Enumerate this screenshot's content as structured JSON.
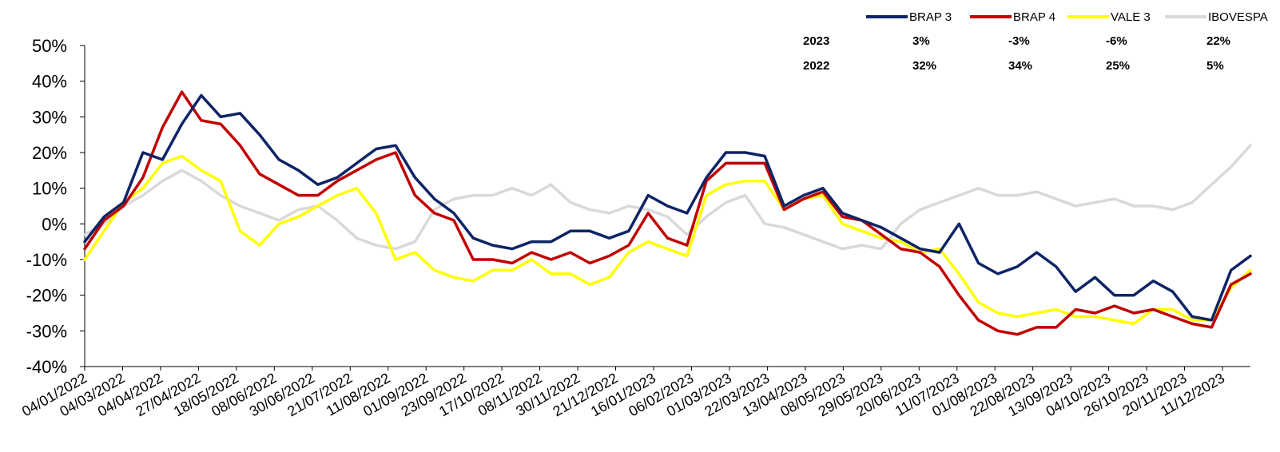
{
  "chart_data": {
    "type": "line",
    "title": "",
    "xlabel": "",
    "ylabel": "",
    "ylim": [
      -40,
      50
    ],
    "y_ticks": [
      "50%",
      "40%",
      "30%",
      "20%",
      "10%",
      "0%",
      "-10%",
      "-20%",
      "-30%",
      "-40%"
    ],
    "grid": false,
    "legend_position": "top-right",
    "x_tick_labels": [
      "04/01/2022",
      "04/03/2022",
      "04/04/2022",
      "27/04/2022",
      "18/05/2022",
      "08/06/2022",
      "30/06/2022",
      "21/07/2022",
      "11/08/2022",
      "01/09/2022",
      "23/09/2022",
      "17/10/2022",
      "08/11/2022",
      "30/11/2022",
      "21/12/2022",
      "16/01/2023",
      "06/02/2023",
      "01/03/2023",
      "22/03/2023",
      "13/04/2023",
      "08/05/2023",
      "29/05/2023",
      "20/06/2023",
      "11/07/2023",
      "01/08/2023",
      "22/08/2023",
      "13/09/2023",
      "04/10/2023",
      "26/10/2023",
      "20/11/2023",
      "11/12/2023"
    ],
    "series": [
      {
        "name": "BRAP 3",
        "color": "#0D2466",
        "values": [
          -5,
          2,
          6,
          20,
          18,
          28,
          36,
          30,
          31,
          25,
          18,
          15,
          11,
          13,
          17,
          21,
          22,
          13,
          7,
          3,
          -4,
          -6,
          -7,
          -5,
          -5,
          -2,
          -2,
          -4,
          -2,
          8,
          5,
          3,
          13,
          20,
          20,
          19,
          5,
          8,
          10,
          3,
          1,
          -1,
          -4,
          -7,
          -8,
          0,
          -11,
          -14,
          -12,
          -8,
          -12,
          -19,
          -15,
          -20,
          -20,
          -16,
          -19,
          -26,
          -27,
          -13,
          -9
        ]
      },
      {
        "name": "BRAP 4",
        "color": "#C00000",
        "values": [
          -7,
          1,
          5,
          13,
          27,
          37,
          29,
          28,
          22,
          14,
          11,
          8,
          8,
          12,
          15,
          18,
          20,
          8,
          3,
          1,
          -10,
          -10,
          -11,
          -8,
          -10,
          -8,
          -11,
          -9,
          -6,
          3,
          -4,
          -6,
          12,
          17,
          17,
          17,
          4,
          7,
          9,
          2,
          1,
          -3,
          -7,
          -8,
          -12,
          -20,
          -27,
          -30,
          -31,
          -29,
          -29,
          -24,
          -25,
          -23,
          -25,
          -24,
          -26,
          -28,
          -29,
          -17,
          -14
        ]
      },
      {
        "name": "VALE 3",
        "color": "#FFFF00",
        "values": [
          -10,
          -2,
          6,
          10,
          17,
          19,
          15,
          12,
          -2,
          -6,
          0,
          2,
          5,
          8,
          10,
          3,
          -10,
          -8,
          -13,
          -15,
          -16,
          -13,
          -13,
          -10,
          -14,
          -14,
          -17,
          -15,
          -8,
          -5,
          -7,
          -9,
          8,
          11,
          12,
          12,
          4,
          7,
          8,
          0,
          -2,
          -4,
          -5,
          -8,
          -7,
          -14,
          -22,
          -25,
          -26,
          -25,
          -24,
          -26,
          -26,
          -27,
          -28,
          -24,
          -24,
          -27,
          -27,
          -18,
          -13
        ]
      },
      {
        "name": "IBOVESPA",
        "color": "#D9D9D9",
        "values": [
          -3,
          0,
          5,
          8,
          12,
          15,
          12,
          8,
          5,
          3,
          1,
          4,
          5,
          1,
          -4,
          -6,
          -7,
          -5,
          4,
          7,
          8,
          8,
          10,
          8,
          11,
          6,
          4,
          3,
          5,
          4,
          2,
          -3,
          2,
          6,
          8,
          0,
          -1,
          -3,
          -5,
          -7,
          -6,
          -7,
          0,
          4,
          6,
          8,
          10,
          8,
          8,
          9,
          7,
          5,
          6,
          7,
          5,
          5,
          4,
          6,
          11,
          16,
          22
        ]
      }
    ]
  },
  "returns_table": {
    "rows": [
      {
        "year": "2023",
        "values": [
          "3%",
          "-3%",
          "-6%",
          "22%"
        ]
      },
      {
        "year": "2022",
        "values": [
          "32%",
          "34%",
          "25%",
          "5%"
        ]
      }
    ]
  }
}
